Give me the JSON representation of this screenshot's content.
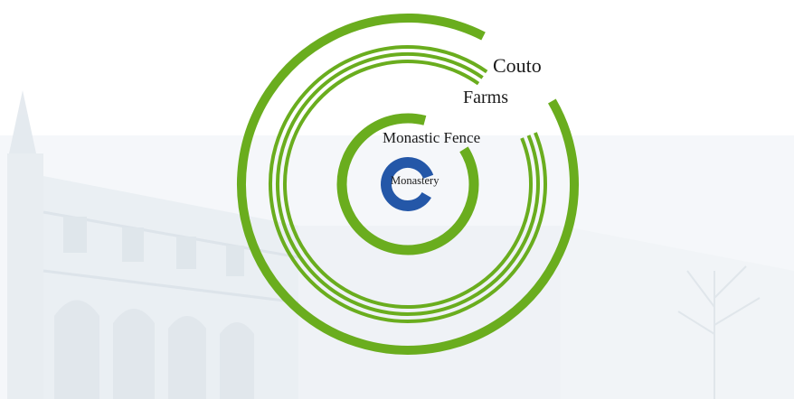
{
  "diagram": {
    "labels": {
      "couto": "Couto",
      "farms": "Farms",
      "fence": "Monastic Fence",
      "monastery": "Monastery"
    },
    "colors": {
      "ring_green": "#6aad1e",
      "core_blue": "#2457a8",
      "background_tint": "#dfe7ee"
    }
  }
}
